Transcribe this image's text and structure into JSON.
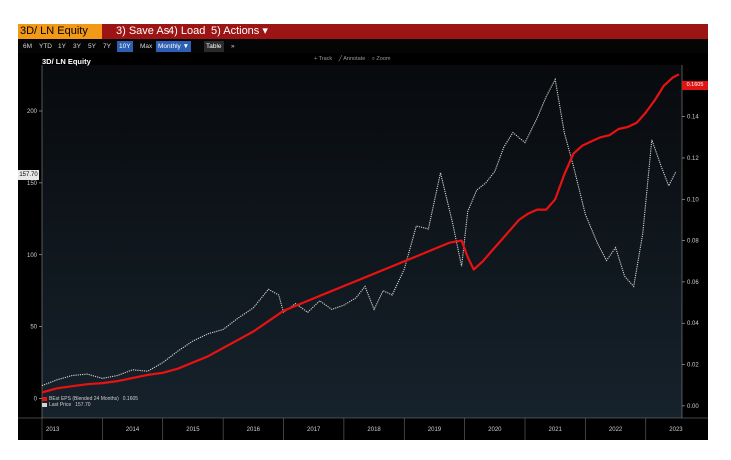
{
  "ticker": {
    "label": "3D/ LN Equity"
  },
  "menu": {
    "save_as": "3) Save As",
    "load": "4) Load",
    "actions": "5) Actions ▾"
  },
  "timeframes": [
    "6M",
    "YTD",
    "1Y",
    "3Y",
    "5Y",
    "7Y",
    "10Y",
    "Max"
  ],
  "active_timeframe": "10Y",
  "frequency": "Monthly ▼",
  "table_btn": "Table",
  "toolbar_extra": "»",
  "chart_tools": [
    "+ Track",
    "╱ Annotate",
    "⌕ Zoom"
  ],
  "price_tag": "157.70",
  "eps_tag": "0.1605",
  "colors": {
    "price": "#d4d4d4",
    "eps": "#e81212",
    "menu_bar": "#9c1414",
    "ticker_box": "#f29a18",
    "selected": "#2d5fb5"
  },
  "chart_data": {
    "type": "line",
    "title": "3D/ LN Equity",
    "x_ticks": [
      "2013",
      "2014",
      "2015",
      "2016",
      "2017",
      "2018",
      "2019",
      "2020",
      "2021",
      "2022",
      "2023"
    ],
    "x_range": [
      2013.0,
      2023.6
    ],
    "left_axis": {
      "ticks": [
        0,
        50,
        100,
        150,
        200
      ],
      "range": [
        -8,
        232
      ]
    },
    "right_axis": {
      "ticks": [
        "0.00",
        "0.02",
        "0.04",
        "0.06",
        "0.08",
        "0.10",
        "0.12",
        "0.14"
      ],
      "range": [
        -0.002,
        0.165
      ]
    },
    "grid": false,
    "legend_position": "bottom-left",
    "series": [
      {
        "name": "Last Price",
        "legend_value": "157.70",
        "axis": "left",
        "style": "dotted",
        "x": [
          2013.0,
          2013.25,
          2013.5,
          2013.75,
          2014.0,
          2014.25,
          2014.5,
          2014.75,
          2015.0,
          2015.25,
          2015.5,
          2015.75,
          2016.0,
          2016.25,
          2016.5,
          2016.75,
          2016.92,
          2017.0,
          2017.2,
          2017.4,
          2017.6,
          2017.8,
          2018.0,
          2018.2,
          2018.35,
          2018.5,
          2018.65,
          2018.8,
          2019.0,
          2019.2,
          2019.4,
          2019.6,
          2019.8,
          2019.95,
          2020.05,
          2020.2,
          2020.35,
          2020.5,
          2020.65,
          2020.8,
          2021.0,
          2021.2,
          2021.35,
          2021.5,
          2021.65,
          2021.8,
          2022.0,
          2022.2,
          2022.35,
          2022.5,
          2022.65,
          2022.8,
          2022.95,
          2023.1,
          2023.25,
          2023.38,
          2023.5
        ],
        "values": [
          9,
          13,
          16,
          17,
          14,
          16,
          20,
          19,
          25,
          33,
          40,
          45,
          48,
          56,
          63,
          76,
          72,
          60,
          66,
          60,
          68,
          62,
          65,
          70,
          78,
          62,
          75,
          72,
          90,
          120,
          118,
          157,
          122,
          92,
          130,
          145,
          150,
          158,
          175,
          185,
          178,
          195,
          210,
          222,
          185,
          162,
          128,
          108,
          96,
          105,
          85,
          78,
          115,
          180,
          162,
          148,
          158
        ]
      },
      {
        "name": "BEst EPS (Blended 24 Months)",
        "legend_value": "0.1605",
        "axis": "right",
        "style": "solid",
        "x": [
          2013.0,
          2013.25,
          2013.5,
          2013.75,
          2014.0,
          2014.25,
          2014.5,
          2014.75,
          2015.0,
          2015.25,
          2015.5,
          2015.75,
          2016.0,
          2016.25,
          2016.5,
          2016.75,
          2017.0,
          2017.25,
          2017.5,
          2017.75,
          2018.0,
          2018.25,
          2018.5,
          2018.75,
          2019.0,
          2019.25,
          2019.5,
          2019.75,
          2019.95,
          2020.05,
          2020.15,
          2020.3,
          2020.45,
          2020.6,
          2020.75,
          2020.9,
          2021.05,
          2021.2,
          2021.35,
          2021.5,
          2021.65,
          2021.8,
          2021.95,
          2022.1,
          2022.25,
          2022.4,
          2022.55,
          2022.7,
          2022.85,
          2023.0,
          2023.15,
          2023.3,
          2023.45,
          2023.55
        ],
        "values": [
          0.0065,
          0.0085,
          0.0095,
          0.0105,
          0.011,
          0.012,
          0.0135,
          0.015,
          0.016,
          0.018,
          0.021,
          0.024,
          0.028,
          0.032,
          0.036,
          0.041,
          0.046,
          0.049,
          0.052,
          0.055,
          0.058,
          0.061,
          0.064,
          0.067,
          0.07,
          0.073,
          0.076,
          0.079,
          0.08,
          0.072,
          0.066,
          0.07,
          0.075,
          0.08,
          0.085,
          0.09,
          0.093,
          0.095,
          0.095,
          0.1,
          0.112,
          0.122,
          0.126,
          0.128,
          0.13,
          0.131,
          0.134,
          0.135,
          0.137,
          0.142,
          0.148,
          0.155,
          0.159,
          0.1605
        ]
      }
    ]
  }
}
